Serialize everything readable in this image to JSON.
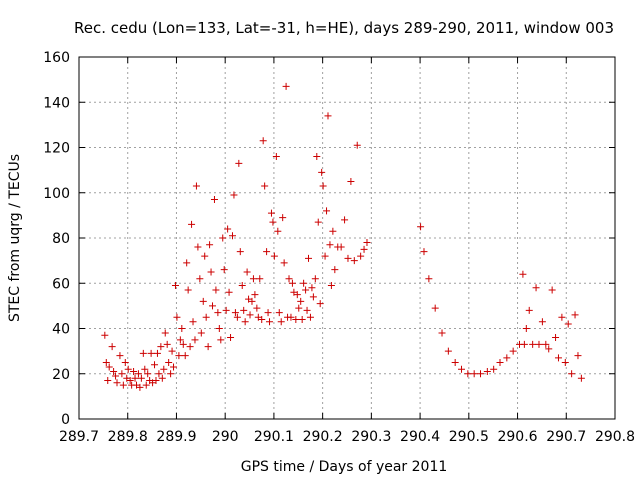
{
  "chart_data": {
    "type": "scatter",
    "title": "Rec. cedu (Lon=133, Lat=-31, h=HE), days 289-290, 2011, window 003",
    "xlabel": "GPS time / Days of year 2011",
    "ylabel": "STEC from uqrg / TECUs",
    "xlim": [
      289.7,
      290.8
    ],
    "ylim": [
      0,
      160
    ],
    "xticks": [
      "289.7",
      "289.8",
      "289.9",
      "290",
      "290.1",
      "290.2",
      "290.3",
      "290.4",
      "290.5",
      "290.6",
      "290.7",
      "290.8"
    ],
    "yticks": [
      "0",
      "20",
      "40",
      "60",
      "80",
      "100",
      "120",
      "140",
      "160"
    ],
    "grid": true,
    "marker": "plus",
    "color": "#cc0000",
    "series": [
      {
        "points": [
          [
            289.753,
            37
          ],
          [
            289.756,
            25
          ],
          [
            289.759,
            17
          ],
          [
            289.762,
            23
          ],
          [
            289.768,
            32
          ],
          [
            289.771,
            21
          ],
          [
            289.775,
            19
          ],
          [
            289.778,
            16
          ],
          [
            289.784,
            28
          ],
          [
            289.788,
            20
          ],
          [
            289.791,
            15
          ],
          [
            289.795,
            25
          ],
          [
            289.798,
            18
          ],
          [
            289.801,
            22
          ],
          [
            289.805,
            17
          ],
          [
            289.808,
            15
          ],
          [
            289.812,
            21
          ],
          [
            289.815,
            18
          ],
          [
            289.818,
            15
          ],
          [
            289.822,
            20
          ],
          [
            289.825,
            14
          ],
          [
            289.828,
            18
          ],
          [
            289.832,
            29
          ],
          [
            289.835,
            22
          ],
          [
            289.838,
            15
          ],
          [
            289.841,
            20
          ],
          [
            289.845,
            17
          ],
          [
            289.848,
            29
          ],
          [
            289.851,
            16
          ],
          [
            289.855,
            24
          ],
          [
            289.858,
            17
          ],
          [
            289.861,
            29
          ],
          [
            289.864,
            20
          ],
          [
            289.868,
            32
          ],
          [
            289.871,
            18
          ],
          [
            289.874,
            22
          ],
          [
            289.877,
            38
          ],
          [
            289.881,
            33
          ],
          [
            289.884,
            25
          ],
          [
            289.888,
            20
          ],
          [
            289.891,
            30
          ],
          [
            289.894,
            23
          ],
          [
            289.898,
            59
          ],
          [
            289.901,
            45
          ],
          [
            289.905,
            28
          ],
          [
            289.908,
            35
          ],
          [
            289.911,
            40
          ],
          [
            289.914,
            33
          ],
          [
            289.918,
            28
          ],
          [
            289.921,
            69
          ],
          [
            289.924,
            57
          ],
          [
            289.928,
            32
          ],
          [
            289.931,
            86
          ],
          [
            289.934,
            43
          ],
          [
            289.938,
            35
          ],
          [
            289.941,
            103
          ],
          [
            289.944,
            76
          ],
          [
            289.948,
            62
          ],
          [
            289.951,
            38
          ],
          [
            289.955,
            52
          ],
          [
            289.958,
            72
          ],
          [
            289.961,
            45
          ],
          [
            289.965,
            32
          ],
          [
            289.968,
            77
          ],
          [
            289.971,
            65
          ],
          [
            289.974,
            50
          ],
          [
            289.978,
            97
          ],
          [
            289.981,
            57
          ],
          [
            289.985,
            47
          ],
          [
            289.988,
            40
          ],
          [
            289.991,
            35
          ],
          [
            289.995,
            80
          ],
          [
            289.998,
            66
          ],
          [
            290.002,
            48
          ],
          [
            290.005,
            84
          ],
          [
            290.008,
            56
          ],
          [
            290.011,
            36
          ],
          [
            290.015,
            81
          ],
          [
            290.018,
            99
          ],
          [
            290.021,
            47
          ],
          [
            290.025,
            45
          ],
          [
            290.028,
            113
          ],
          [
            290.031,
            74
          ],
          [
            290.035,
            59
          ],
          [
            290.038,
            48
          ],
          [
            290.041,
            43
          ],
          [
            290.045,
            65
          ],
          [
            290.048,
            53
          ],
          [
            290.051,
            46
          ],
          [
            290.055,
            52
          ],
          [
            290.058,
            62
          ],
          [
            290.061,
            55
          ],
          [
            290.065,
            49
          ],
          [
            290.068,
            45
          ],
          [
            290.071,
            62
          ],
          [
            290.075,
            44
          ],
          [
            290.078,
            123
          ],
          [
            290.081,
            103
          ],
          [
            290.085,
            74
          ],
          [
            290.088,
            47
          ],
          [
            290.091,
            43
          ],
          [
            290.095,
            91
          ],
          [
            290.098,
            87
          ],
          [
            290.101,
            72
          ],
          [
            290.105,
            116
          ],
          [
            290.108,
            83
          ],
          [
            290.111,
            47
          ],
          [
            290.115,
            43
          ],
          [
            290.118,
            89
          ],
          [
            290.121,
            69
          ],
          [
            290.125,
            147
          ],
          [
            290.128,
            45
          ],
          [
            290.131,
            62
          ],
          [
            290.135,
            45
          ],
          [
            290.138,
            60
          ],
          [
            290.141,
            56
          ],
          [
            290.145,
            44
          ],
          [
            290.148,
            55
          ],
          [
            290.151,
            49
          ],
          [
            290.155,
            52
          ],
          [
            290.158,
            44
          ],
          [
            290.161,
            60
          ],
          [
            290.165,
            57
          ],
          [
            290.168,
            48
          ],
          [
            290.171,
            71
          ],
          [
            290.175,
            45
          ],
          [
            290.178,
            58
          ],
          [
            290.181,
            54
          ],
          [
            290.185,
            62
          ],
          [
            290.188,
            116
          ],
          [
            290.191,
            87
          ],
          [
            290.195,
            51
          ],
          [
            290.198,
            109
          ],
          [
            290.201,
            103
          ],
          [
            290.205,
            72
          ],
          [
            290.208,
            92
          ],
          [
            290.211,
            134
          ],
          [
            290.215,
            77
          ],
          [
            290.218,
            59
          ],
          [
            290.221,
            83
          ],
          [
            290.225,
            66
          ],
          [
            290.231,
            76
          ],
          [
            290.238,
            76
          ],
          [
            290.245,
            88
          ],
          [
            290.252,
            71
          ],
          [
            290.258,
            105
          ],
          [
            290.265,
            70
          ],
          [
            290.271,
            121
          ],
          [
            290.278,
            72
          ],
          [
            290.285,
            75
          ],
          [
            290.291,
            78
          ],
          [
            290.401,
            85
          ],
          [
            290.408,
            74
          ],
          [
            290.418,
            62
          ],
          [
            290.431,
            49
          ],
          [
            290.445,
            38
          ],
          [
            290.458,
            30
          ],
          [
            290.472,
            25
          ],
          [
            290.485,
            22
          ],
          [
            290.498,
            20
          ],
          [
            290.511,
            20
          ],
          [
            290.524,
            20
          ],
          [
            290.538,
            21
          ],
          [
            290.551,
            22
          ],
          [
            290.564,
            25
          ],
          [
            290.578,
            27
          ],
          [
            290.591,
            30
          ],
          [
            290.604,
            33
          ],
          [
            290.611,
            64
          ],
          [
            290.614,
            33
          ],
          [
            290.618,
            40
          ],
          [
            290.624,
            48
          ],
          [
            290.631,
            33
          ],
          [
            290.638,
            58
          ],
          [
            290.644,
            33
          ],
          [
            290.651,
            43
          ],
          [
            290.658,
            33
          ],
          [
            290.664,
            31
          ],
          [
            290.671,
            57
          ],
          [
            290.678,
            36
          ],
          [
            290.684,
            27
          ],
          [
            290.691,
            45
          ],
          [
            290.698,
            25
          ],
          [
            290.704,
            42
          ],
          [
            290.711,
            20
          ],
          [
            290.718,
            46
          ],
          [
            290.724,
            28
          ],
          [
            290.731,
            18
          ]
        ]
      }
    ]
  }
}
